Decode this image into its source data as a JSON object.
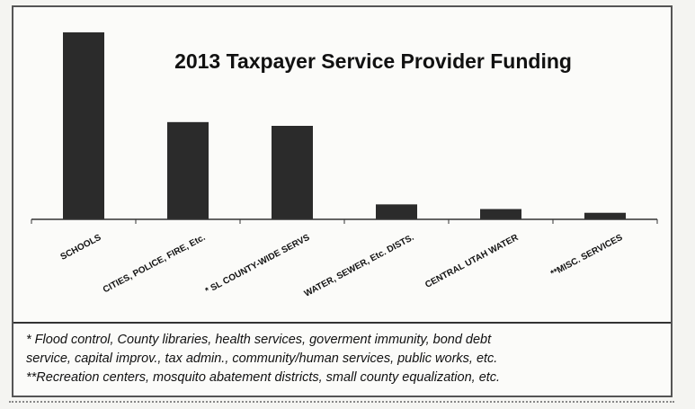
{
  "chart_data": {
    "type": "bar",
    "title": "2013 Taxpayer Service Provider Funding",
    "categories": [
      "SCHOOLS",
      "CITIES, POLICE, FIRE, Etc.",
      "* SL COUNTY-WIDE SERVS",
      "WATER, SEWER, Etc. DISTS.",
      "CENTRAL UTAH WATER",
      "**MISC. SERVICES"
    ],
    "values": [
      100,
      52,
      50,
      8,
      5.5,
      3.5
    ],
    "ylim": [
      0,
      100
    ],
    "grid": false,
    "legend": "none",
    "colors": {
      "bar": "#2b2b2b",
      "axis": "#333333"
    }
  },
  "notes": [
    "* Flood control, County libraries, health services, goverment immunity, bond debt",
    "service, capital improv., tax admin., community/human services, public works, etc.",
    "**Recreation centers, mosquito abatement districts, small county equalization, etc."
  ]
}
